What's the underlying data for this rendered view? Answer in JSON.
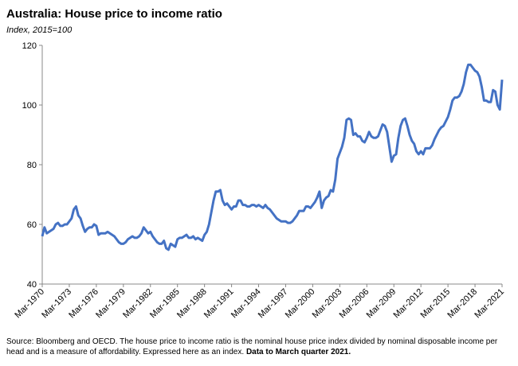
{
  "chart_data": {
    "type": "line",
    "title": "Australia: House price to income ratio",
    "subtitle": "Index, 2015=100",
    "footnote": "Source: Bloomberg and OECD. The house price to income ratio is the nominal house price index divided by nominal disposable income per head and is a measure of affordability.  Expressed here as an index.",
    "footnote_bold": "Data to March quarter 2021.",
    "color": "#4472c4",
    "ylim": [
      40,
      120
    ],
    "yticks": [
      40,
      60,
      80,
      100,
      120
    ],
    "categories": [
      "Mar-1970",
      null,
      null,
      null,
      null,
      null,
      null,
      null,
      null,
      null,
      null,
      null,
      "Mar-1973",
      null,
      null,
      null,
      null,
      null,
      null,
      null,
      null,
      null,
      null,
      null,
      "Mar-1976",
      null,
      null,
      null,
      null,
      null,
      null,
      null,
      null,
      null,
      null,
      null,
      "Mar-1979",
      null,
      null,
      null,
      null,
      null,
      null,
      null,
      null,
      null,
      null,
      null,
      "Mar-1982",
      null,
      null,
      null,
      null,
      null,
      null,
      null,
      null,
      null,
      null,
      null,
      "Mar-1985",
      null,
      null,
      null,
      null,
      null,
      null,
      null,
      null,
      null,
      null,
      null,
      "Mar-1988",
      null,
      null,
      null,
      null,
      null,
      null,
      null,
      null,
      null,
      null,
      null,
      "Mar-1991",
      null,
      null,
      null,
      null,
      null,
      null,
      null,
      null,
      null,
      null,
      null,
      "Mar-1994",
      null,
      null,
      null,
      null,
      null,
      null,
      null,
      null,
      null,
      null,
      null,
      "Mar-1997",
      null,
      null,
      null,
      null,
      null,
      null,
      null,
      null,
      null,
      null,
      null,
      "Mar-2000",
      null,
      null,
      null,
      null,
      null,
      null,
      null,
      null,
      null,
      null,
      null,
      "Mar-2003",
      null,
      null,
      null,
      null,
      null,
      null,
      null,
      null,
      null,
      null,
      null,
      "Mar-2006",
      null,
      null,
      null,
      null,
      null,
      null,
      null,
      null,
      null,
      null,
      null,
      "Mar-2009",
      null,
      null,
      null,
      null,
      null,
      null,
      null,
      null,
      null,
      null,
      null,
      "Mar-2012",
      null,
      null,
      null,
      null,
      null,
      null,
      null,
      null,
      null,
      null,
      null,
      "Mar-2015",
      null,
      null,
      null,
      null,
      null,
      null,
      null,
      null,
      null,
      null,
      null,
      "Mar-2018",
      null,
      null,
      null,
      null,
      null,
      null,
      null,
      null,
      null,
      null,
      null,
      "Mar-2021"
    ],
    "values": [
      56,
      59,
      57,
      57.5,
      58,
      58.5,
      60,
      60.5,
      59.5,
      59.5,
      60,
      60,
      61,
      62,
      65,
      66,
      63,
      62,
      59.5,
      57.5,
      58.5,
      59,
      59,
      60,
      59.5,
      56.5,
      57,
      57,
      57,
      57.5,
      57,
      56.5,
      56,
      55,
      54,
      53.5,
      53.5,
      54,
      55,
      55.5,
      56,
      55.5,
      55.5,
      56,
      57,
      59,
      58,
      57,
      57.5,
      56,
      55,
      54,
      53.5,
      53.5,
      54.5,
      52,
      51.5,
      53.5,
      53,
      52.5,
      55,
      55.5,
      55.5,
      56,
      56.5,
      55.5,
      55.5,
      56,
      55,
      55.5,
      55,
      54.5,
      56.5,
      57.5,
      60,
      64,
      68,
      71,
      71,
      71.5,
      68,
      66.5,
      67,
      66,
      65,
      66,
      66,
      68,
      68,
      66.5,
      66.5,
      66,
      66,
      66.5,
      66.5,
      66,
      66.5,
      66,
      65.5,
      66.5,
      65.5,
      65,
      64,
      63,
      62,
      61.5,
      61,
      61,
      61,
      60.5,
      60.5,
      61,
      62,
      63,
      64.5,
      64.5,
      64.5,
      66,
      66,
      65.5,
      66.5,
      67.5,
      69,
      71,
      65.5,
      68,
      69,
      69.5,
      71.5,
      71,
      75,
      82,
      84,
      86,
      89,
      95,
      95.5,
      95,
      90,
      90.5,
      89.5,
      89.5,
      88,
      87.5,
      89,
      91,
      89.5,
      89,
      89,
      89.5,
      91.5,
      93.5,
      93,
      91,
      86,
      81,
      83,
      83.5,
      89,
      93,
      95,
      95.5,
      93,
      90,
      88,
      87,
      84.5,
      83.5,
      84.5,
      83.5,
      85.5,
      85.5,
      85.5,
      86.5,
      88.5,
      90,
      91.5,
      92.5,
      93,
      94.5,
      96,
      98.5,
      101.5,
      102.5,
      102.5,
      103,
      104.5,
      107,
      111,
      113.5,
      113.5,
      112.5,
      111.5,
      111,
      109.5,
      106,
      101.5,
      101.5,
      101,
      101,
      105,
      104.5,
      100,
      98.5,
      108.5
    ]
  }
}
